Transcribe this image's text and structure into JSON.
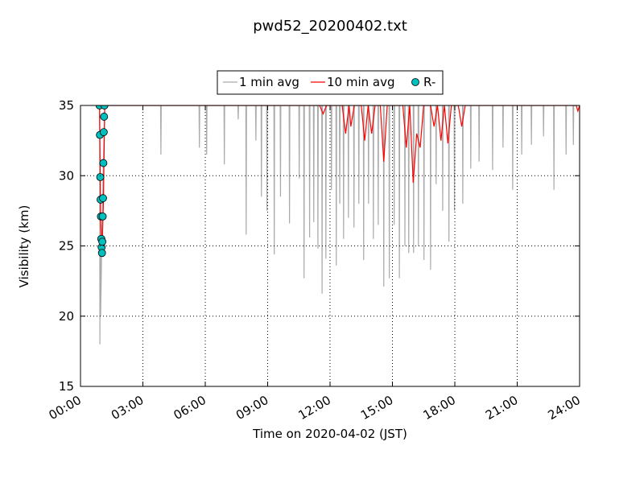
{
  "chart_data": {
    "type": "line",
    "title": "pwd52_20200402.txt",
    "xlabel": "Time on 2020-04-02 (JST)",
    "ylabel": "Visibility (km)",
    "xlim": [
      "00:00",
      "24:00"
    ],
    "xticks": [
      "00:00",
      "03:00",
      "06:00",
      "09:00",
      "12:00",
      "15:00",
      "18:00",
      "21:00",
      "24:00"
    ],
    "ylim": [
      15,
      35
    ],
    "yticks": [
      15,
      20,
      25,
      30,
      35
    ],
    "grid": true,
    "legend": "top",
    "series": [
      {
        "name": "1 min avg",
        "color": "#aaaaaa",
        "style": "line",
        "x": [
          "00:55",
          "00:56",
          "00:57",
          "00:58",
          "01:00",
          "01:02",
          "01:05",
          "01:10",
          "03:51",
          "03:52",
          "03:53",
          "05:42",
          "05:43",
          "05:44",
          "06:03",
          "06:04",
          "06:05",
          "06:54",
          "06:55",
          "06:56",
          "07:34",
          "07:35",
          "07:36",
          "07:57",
          "07:58",
          "07:59",
          "08:25",
          "08:26",
          "08:27",
          "08:41",
          "08:42",
          "08:43",
          "08:57",
          "08:58",
          "08:59",
          "09:18",
          "09:19",
          "09:20",
          "09:36",
          "09:37",
          "09:38",
          "10:02",
          "10:03",
          "10:04",
          "10:30",
          "10:31",
          "10:32",
          "10:44",
          "10:45",
          "10:46",
          "11:00",
          "11:01",
          "11:02",
          "11:12",
          "11:13",
          "11:14",
          "11:24",
          "11:25",
          "11:26",
          "11:36",
          "11:37",
          "11:38",
          "11:47",
          "11:48",
          "11:49",
          "12:03",
          "12:04",
          "12:05",
          "12:17",
          "12:18",
          "12:19",
          "12:27",
          "12:28",
          "12:29",
          "12:38",
          "12:39",
          "12:40",
          "12:52",
          "12:53",
          "12:54",
          "13:08",
          "13:09",
          "13:10",
          "13:22",
          "13:23",
          "13:24",
          "13:36",
          "13:37",
          "13:38",
          "13:50",
          "13:51",
          "13:52",
          "14:04",
          "14:05",
          "14:06",
          "14:18",
          "14:19",
          "14:20",
          "14:34",
          "14:35",
          "14:36",
          "14:50",
          "14:51",
          "14:52",
          "15:04",
          "15:05",
          "15:06",
          "15:19",
          "15:20",
          "15:21",
          "15:35",
          "15:36",
          "15:37",
          "15:46",
          "15:47",
          "15:48",
          "16:00",
          "16:01",
          "16:02",
          "16:14",
          "16:15",
          "16:16",
          "16:30",
          "16:31",
          "16:32",
          "16:49",
          "16:50",
          "16:51",
          "17:05",
          "17:06",
          "17:07",
          "17:24",
          "17:25",
          "17:26",
          "17:42",
          "17:43",
          "17:44",
          "17:58",
          "17:59",
          "18:00",
          "18:22",
          "18:23",
          "18:24",
          "18:45",
          "18:46",
          "18:47",
          "19:09",
          "19:10",
          "19:11",
          "19:48",
          "19:49",
          "19:50",
          "20:18",
          "20:19",
          "20:20",
          "20:46",
          "20:47",
          "20:48",
          "21:12",
          "21:13",
          "21:14",
          "21:40",
          "21:41",
          "21:42",
          "22:15",
          "22:16",
          "22:17",
          "22:45",
          "22:46",
          "22:47",
          "23:20",
          "23:21",
          "23:22",
          "23:41",
          "23:42",
          "23:43",
          "24:00"
        ],
        "values": [
          35,
          18,
          29,
          20,
          23,
          26,
          30,
          35,
          35,
          31.5,
          35,
          35,
          32,
          35,
          35,
          31.5,
          35,
          35,
          30.8,
          35,
          35,
          34,
          35,
          35,
          25.8,
          35,
          35,
          32.5,
          35,
          35,
          28.5,
          35,
          35,
          27.5,
          35,
          35,
          24.4,
          35,
          35,
          28.5,
          35,
          35,
          26.6,
          35,
          35,
          29.8,
          35,
          35,
          22.7,
          35,
          35,
          25.6,
          35,
          35,
          26.7,
          35,
          35,
          24.8,
          35,
          35,
          21.6,
          35,
          35,
          24.1,
          35,
          35,
          29,
          35,
          35,
          23.6,
          35,
          35,
          28,
          35,
          35,
          25.5,
          35,
          35,
          27,
          35,
          35,
          26.3,
          35,
          35,
          28,
          35,
          35,
          24,
          35,
          35,
          28,
          35,
          35,
          25.5,
          35,
          35,
          26.5,
          35,
          35,
          22.1,
          35,
          35,
          22.7,
          35,
          35,
          26.5,
          35,
          35,
          22.7,
          35,
          35,
          25,
          35,
          35,
          24.5,
          35,
          35,
          24.5,
          35,
          35,
          25,
          35,
          35,
          24,
          35,
          35,
          23.3,
          35,
          35,
          29.4,
          35,
          35,
          27.5,
          35,
          35,
          25.3,
          35,
          35,
          27.5,
          35,
          35,
          28,
          35,
          35,
          30.5,
          35,
          35,
          31,
          35,
          35,
          30.4,
          35,
          35,
          32,
          35,
          35,
          29,
          35,
          35,
          31.5,
          35,
          35,
          32.2,
          35,
          35,
          32.8,
          35,
          35,
          29,
          35,
          35,
          31.5,
          35,
          35,
          32.2,
          35,
          35
        ]
      },
      {
        "name": "10 min avg",
        "color": "#ff0000",
        "style": "line",
        "x": [
          "00:55",
          "00:58",
          "01:02",
          "01:06",
          "01:10",
          "11:30",
          "11:40",
          "11:50",
          "12:35",
          "12:45",
          "12:55",
          "13:00",
          "13:10",
          "13:30",
          "13:40",
          "13:50",
          "14:00",
          "14:10",
          "14:25",
          "14:35",
          "14:45",
          "15:30",
          "15:40",
          "15:50",
          "16:00",
          "16:10",
          "16:20",
          "16:30",
          "16:50",
          "17:00",
          "17:10",
          "17:20",
          "17:30",
          "17:40",
          "17:50",
          "18:10",
          "18:20",
          "18:30",
          "23:50",
          "23:55",
          "24:00"
        ],
        "values": [
          35,
          27,
          24.5,
          28,
          35,
          35,
          34.4,
          35,
          35,
          33,
          35,
          33.5,
          35,
          35,
          32.5,
          35,
          33,
          35,
          35,
          31,
          35,
          35,
          32,
          35,
          29.5,
          33,
          32,
          35,
          35,
          33.5,
          35,
          32.5,
          35,
          32.3,
          35,
          35,
          33.5,
          35,
          35,
          34.6,
          35
        ]
      },
      {
        "name": "R-",
        "color": "#00bfbf",
        "style": "marker",
        "x": [
          "00:55",
          "00:56",
          "00:57",
          "00:58",
          "00:59",
          "01:00",
          "01:01",
          "01:02",
          "01:03",
          "01:04",
          "01:05",
          "01:06",
          "01:07",
          "01:08",
          "01:09"
        ],
        "values": [
          35,
          32.9,
          29.9,
          28.3,
          27.1,
          25.5,
          24.9,
          24.5,
          25.3,
          27.1,
          28.4,
          30.9,
          33.1,
          34.2,
          35
        ]
      }
    ]
  }
}
